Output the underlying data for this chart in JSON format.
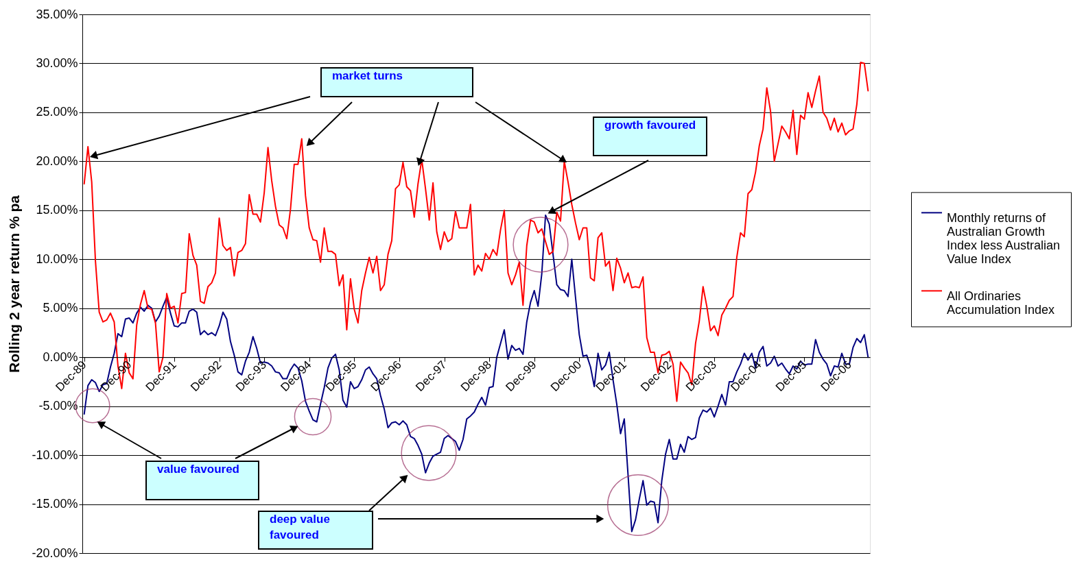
{
  "chart_data": {
    "type": "line",
    "ylabel": "Rolling 2 year return % pa",
    "categories": [
      "Dec-89",
      null,
      null,
      null,
      null,
      null,
      null,
      null,
      null,
      null,
      null,
      null,
      "Dec-90",
      null,
      null,
      null,
      null,
      null,
      null,
      null,
      null,
      null,
      null,
      null,
      "Dec-91",
      null,
      null,
      null,
      null,
      null,
      null,
      null,
      null,
      null,
      null,
      null,
      "Dec-92",
      null,
      null,
      null,
      null,
      null,
      null,
      null,
      null,
      null,
      null,
      null,
      "Dec-93",
      null,
      null,
      null,
      null,
      null,
      null,
      null,
      null,
      null,
      null,
      null,
      "Dec-94",
      null,
      null,
      null,
      null,
      null,
      null,
      null,
      null,
      null,
      null,
      null,
      "Dec-95",
      null,
      null,
      null,
      null,
      null,
      null,
      null,
      null,
      null,
      null,
      null,
      "Dec-96",
      null,
      null,
      null,
      null,
      null,
      null,
      null,
      null,
      null,
      null,
      null,
      "Dec-97",
      null,
      null,
      null,
      null,
      null,
      null,
      null,
      null,
      null,
      null,
      null,
      "Dec-98",
      null,
      null,
      null,
      null,
      null,
      null,
      null,
      null,
      null,
      null,
      null,
      "Dec-99",
      null,
      null,
      null,
      null,
      null,
      null,
      null,
      null,
      null,
      null,
      null,
      "Dec-00",
      null,
      null,
      null,
      null,
      null,
      null,
      null,
      null,
      null,
      null,
      null,
      "Dec-01",
      null,
      null,
      null,
      null,
      null,
      null,
      null,
      null,
      null,
      null,
      null,
      "Dec-02",
      null,
      null,
      null,
      null,
      null,
      null,
      null,
      null,
      null,
      null,
      null,
      "Dec-03",
      null,
      null,
      null,
      null,
      null,
      null,
      null,
      null,
      null,
      null,
      null,
      "Dec-04",
      null,
      null,
      null,
      null,
      null,
      null,
      null,
      null,
      null,
      null,
      null,
      "Dec-05",
      null,
      null,
      null,
      null,
      null,
      null,
      null,
      null,
      null,
      null,
      null,
      "Dec-06",
      null,
      null,
      null,
      null,
      null
    ],
    "series": [
      {
        "name": "Monthly returns of Australian Growth Index less Australian Value Index",
        "color": "#000080",
        "values": [
          -5.8,
          -2.9,
          -2.3,
          -2.6,
          -3.5,
          -2.8,
          -2.7,
          -1.0,
          0.4,
          2.4,
          2.1,
          3.9,
          4.0,
          3.5,
          4.5,
          5.1,
          4.7,
          5.3,
          5.0,
          3.6,
          4.2,
          5.2,
          6.1,
          4.5,
          3.2,
          3.1,
          3.5,
          3.5,
          4.7,
          4.9,
          4.6,
          2.3,
          2.7,
          2.3,
          2.5,
          2.2,
          3.2,
          4.6,
          3.9,
          1.6,
          0.2,
          -1.5,
          -1.8,
          -0.4,
          0.5,
          2.1,
          0.9,
          -0.6,
          -0.5,
          -0.6,
          -0.9,
          -1.5,
          -1.6,
          -2.2,
          -2.2,
          -1.3,
          -0.7,
          -1.1,
          -2.4,
          -4.5,
          -5.5,
          -6.4,
          -6.6,
          -4.8,
          -3.1,
          -1.1,
          -0.1,
          0.3,
          -1.3,
          -4.4,
          -5.1,
          -2.5,
          -3.2,
          -3.0,
          -2.3,
          -1.3,
          -1.0,
          -1.7,
          -2.2,
          -3.9,
          -5.3,
          -7.2,
          -6.7,
          -6.6,
          -6.9,
          -6.5,
          -6.9,
          -8.1,
          -8.3,
          -9.0,
          -9.9,
          -11.8,
          -10.8,
          -10.1,
          -9.9,
          -9.7,
          -8.3,
          -8.0,
          -8.3,
          -8.6,
          -9.5,
          -8.4,
          -6.3,
          -6.0,
          -5.6,
          -4.8,
          -4.1,
          -4.9,
          -3.1,
          -3.0,
          0.0,
          1.4,
          2.8,
          -0.2,
          1.2,
          0.7,
          0.9,
          0.3,
          3.6,
          5.6,
          6.8,
          5.2,
          8.5,
          14.5,
          13.6,
          10.5,
          7.4,
          6.9,
          6.8,
          6.2,
          10.0,
          6.1,
          2.3,
          0.1,
          0.2,
          -1.0,
          -3.0,
          0.4,
          -1.3,
          -0.8,
          0.5,
          -2.3,
          -4.8,
          -7.8,
          -6.3,
          -12.0,
          -17.8,
          -16.6,
          -14.5,
          -12.6,
          -15.1,
          -14.7,
          -14.8,
          -16.9,
          -12.6,
          -9.9,
          -8.4,
          -10.4,
          -10.4,
          -8.9,
          -9.7,
          -8.1,
          -8.4,
          -8.2,
          -6.2,
          -5.4,
          -5.6,
          -5.2,
          -6.1,
          -5.0,
          -3.8,
          -4.9,
          -2.5,
          -2.5,
          -1.5,
          -0.7,
          0.4,
          -0.3,
          0.4,
          -1.1,
          0.5,
          1.1,
          -0.9,
          -0.6,
          0.1,
          -0.9,
          -0.6,
          -1.2,
          -1.7,
          -0.9,
          -1.2,
          -0.4,
          -0.8,
          -0.7,
          -0.7,
          1.8,
          0.5,
          -0.2,
          -0.7,
          -1.9,
          -0.9,
          -1.0,
          0.4,
          -0.7,
          -0.7,
          1.0,
          1.9,
          1.5,
          2.3,
          0.0
        ]
      },
      {
        "name": "All Ordinaries Accumulation Index",
        "color": "#ff0000",
        "values": [
          17.7,
          21.5,
          17.9,
          9.8,
          4.6,
          3.6,
          3.8,
          4.5,
          3.6,
          -0.9,
          -3.2,
          0.4,
          -1.6,
          -2.2,
          3.3,
          5.4,
          6.8,
          5.0,
          4.9,
          3.5,
          -1.5,
          0.0,
          6.5,
          5.0,
          5.2,
          3.5,
          6.5,
          6.6,
          12.6,
          10.4,
          9.4,
          5.7,
          5.5,
          7.2,
          7.6,
          8.6,
          14.2,
          11.4,
          10.9,
          11.2,
          8.3,
          10.7,
          10.9,
          11.6,
          16.6,
          14.6,
          14.6,
          13.8,
          16.8,
          21.4,
          18.0,
          15.4,
          13.5,
          13.2,
          12.1,
          15.1,
          19.7,
          19.7,
          22.3,
          16.5,
          13.2,
          12.0,
          11.9,
          9.7,
          13.2,
          10.8,
          10.8,
          10.5,
          7.3,
          8.4,
          2.8,
          8.0,
          4.9,
          3.5,
          6.8,
          8.6,
          10.2,
          8.6,
          10.3,
          6.8,
          7.4,
          10.5,
          11.9,
          17.2,
          17.6,
          19.9,
          17.4,
          17.0,
          14.3,
          17.7,
          20.2,
          17.2,
          14.0,
          17.8,
          12.8,
          11.0,
          12.8,
          11.8,
          12.1,
          14.9,
          13.2,
          13.2,
          13.2,
          15.6,
          8.4,
          9.4,
          8.8,
          10.6,
          10.0,
          11.0,
          10.4,
          13.0,
          15.0,
          8.6,
          7.4,
          8.4,
          9.7,
          5.3,
          11.4,
          14.0,
          13.8,
          12.7,
          13.1,
          11.8,
          10.5,
          10.8,
          14.8,
          13.9,
          20.0,
          17.9,
          15.6,
          13.7,
          12.0,
          13.2,
          13.2,
          8.1,
          7.8,
          12.2,
          12.7,
          9.3,
          9.8,
          6.8,
          10.1,
          9.1,
          7.6,
          8.6,
          7.1,
          7.2,
          7.1,
          8.2,
          2.0,
          0.5,
          0.5,
          -1.6,
          0.2,
          0.3,
          0.6,
          -0.7,
          -4.5,
          -0.5,
          -1.1,
          -1.6,
          -2.8,
          1.4,
          3.7,
          7.2,
          5.2,
          2.7,
          3.2,
          2.2,
          4.3,
          5.0,
          5.8,
          6.2,
          10.2,
          12.7,
          12.3,
          16.7,
          17.1,
          18.9,
          21.6,
          23.3,
          27.5,
          25.1,
          20.0,
          21.8,
          23.6,
          23.0,
          22.3,
          25.2,
          20.7,
          24.7,
          24.3,
          27.0,
          25.5,
          27.2,
          28.7,
          25.0,
          24.4,
          23.2,
          24.4,
          23.0,
          23.9,
          22.7,
          23.1,
          23.3,
          25.8,
          30.1,
          30.0,
          27.2
        ]
      }
    ],
    "ylim": [
      -20,
      35
    ],
    "yticks": [
      {
        "value": -20,
        "label": "-20.00%"
      },
      {
        "value": -15,
        "label": "-15.00%"
      },
      {
        "value": -10,
        "label": "-10.00%"
      },
      {
        "value": -5,
        "label": "-5.00%"
      },
      {
        "value": 0,
        "label": "0.00%"
      },
      {
        "value": 5,
        "label": "5.00%"
      },
      {
        "value": 10,
        "label": "10.00%"
      },
      {
        "value": 15,
        "label": "15.00%"
      },
      {
        "value": 20,
        "label": "20.00%"
      },
      {
        "value": 25,
        "label": "25.00%"
      },
      {
        "value": 30,
        "label": "30.00%"
      },
      {
        "value": 35,
        "label": "35.00%"
      }
    ],
    "grid": "y",
    "legend": "right",
    "line_style": "solid",
    "marker": "none",
    "annotations": [
      "market turns",
      "growth favoured",
      "value favoured",
      "deep value favoured"
    ]
  }
}
